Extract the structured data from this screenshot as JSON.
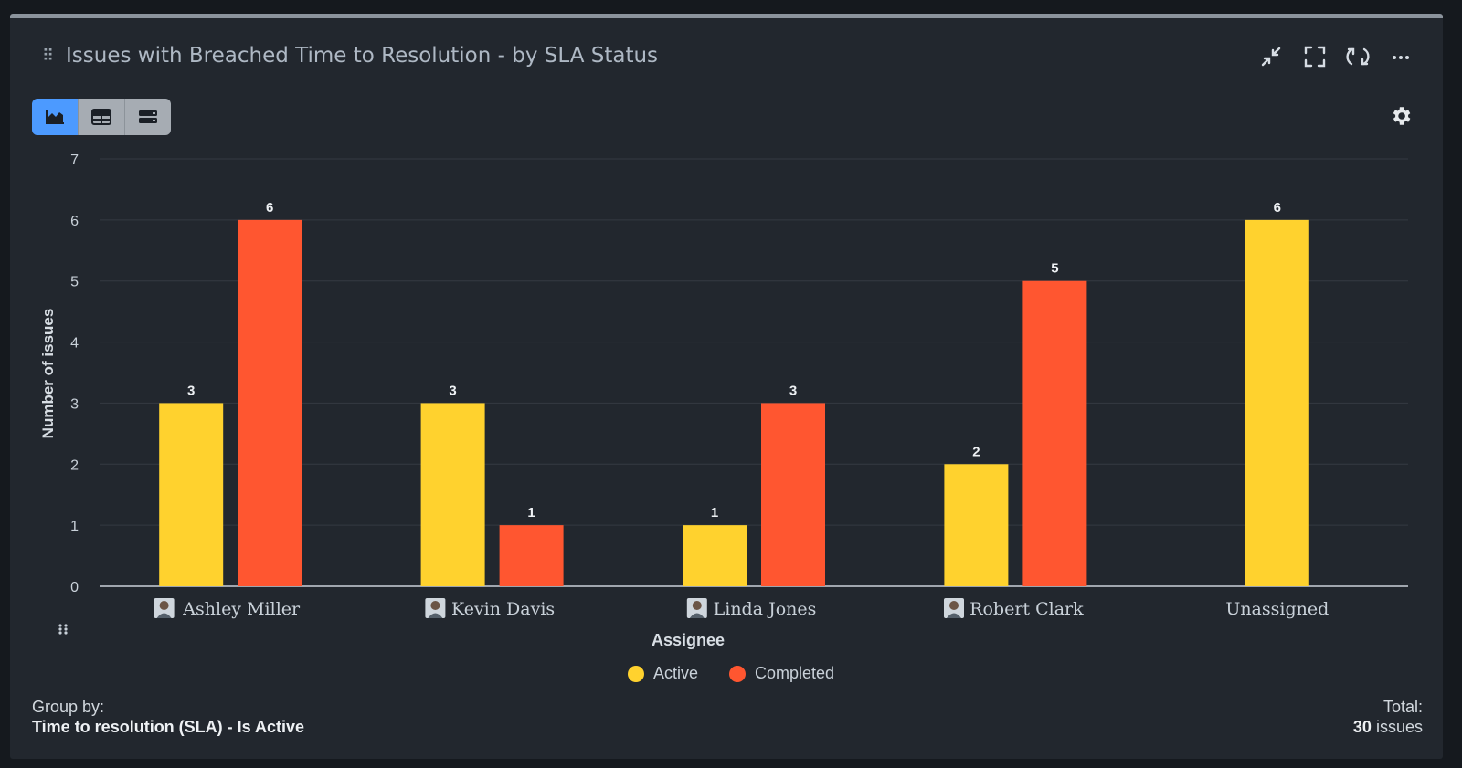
{
  "header": {
    "title": "Issues with Breached Time to Resolution - by SLA Status"
  },
  "icons": {
    "drag": "drag-handle-icon",
    "collapse": "collapse-icon",
    "fullscreen": "fullscreen-icon",
    "refresh": "refresh-icon",
    "more": "more-icon",
    "settings": "gear-icon",
    "view_chart": "chart-view-icon",
    "view_table": "table-view-icon",
    "view_list": "list-view-icon"
  },
  "colors": {
    "active": "#ffd22e",
    "completed": "#ff5630",
    "accent": "#4c9aff"
  },
  "chart_data": {
    "type": "bar",
    "xlabel": "Assignee",
    "ylabel": "Number of issues",
    "ylim": [
      0,
      7
    ],
    "yticks": [
      0,
      1,
      2,
      3,
      4,
      5,
      6,
      7
    ],
    "grid": true,
    "legend_position": "bottom",
    "categories": [
      "Ashley Miller",
      "Kevin Davis",
      "Linda Jones",
      "Robert Clark",
      "Unassigned"
    ],
    "category_avatars": [
      true,
      true,
      true,
      true,
      false
    ],
    "series": [
      {
        "name": "Active",
        "color": "#ffd22e",
        "values": [
          3,
          3,
          1,
          2,
          6
        ]
      },
      {
        "name": "Completed",
        "color": "#ff5630",
        "values": [
          6,
          1,
          3,
          5,
          null
        ]
      }
    ]
  },
  "footer": {
    "group_by_label": "Group by:",
    "group_by_value": "Time to resolution (SLA) - Is Active",
    "total_label": "Total:",
    "total_count": "30",
    "total_unit": "issues"
  }
}
